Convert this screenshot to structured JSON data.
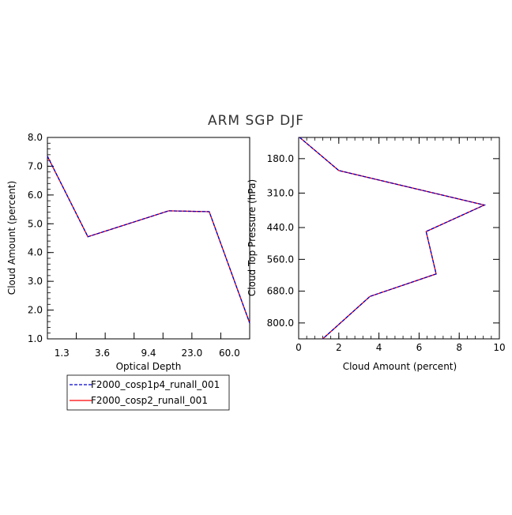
{
  "figure": {
    "title": "ARM SGP DJF"
  },
  "legend": {
    "placement": "bottom-left",
    "entries": [
      {
        "name": "F2000_cosp1p4_runall_001",
        "color": "#0000cc",
        "style": "dashed"
      },
      {
        "name": "F2000_cosp2_runall_001",
        "color": "#ff0000",
        "style": "solid"
      }
    ]
  },
  "chart_data": [
    {
      "type": "line",
      "title": "",
      "xlabel": "Optical Depth",
      "ylabel": "Cloud Amount (percent)",
      "x_tick_labels": [
        "1.3",
        "3.6",
        "9.4",
        "23.0",
        "60.0"
      ],
      "x_category_range": [
        0,
        7
      ],
      "ylim": [
        1.0,
        8.0
      ],
      "y_tick_labels": [
        "1.0",
        "2.0",
        "3.0",
        "4.0",
        "5.0",
        "6.0",
        "7.0",
        "8.0"
      ],
      "series": [
        {
          "name": "F2000_cosp1p4_runall_001",
          "x": [
            0,
            1.4,
            4.2,
            5.6,
            7
          ],
          "y": [
            7.35,
            4.55,
            5.45,
            5.42,
            1.55
          ]
        },
        {
          "name": "F2000_cosp2_runall_001",
          "x": [
            0,
            1.4,
            4.2,
            5.6,
            7
          ],
          "y": [
            7.35,
            4.55,
            5.45,
            5.42,
            1.55
          ]
        }
      ]
    },
    {
      "type": "line",
      "title": "",
      "xlabel": "Cloud Amount (percent)",
      "ylabel": "Cloud Top Pressure (hPa)",
      "xlim": [
        0,
        10
      ],
      "x_tick_labels": [
        "0",
        "2",
        "4",
        "6",
        "8",
        "10"
      ],
      "ylim": [
        100,
        860
      ],
      "y_inverted": true,
      "y_tick_labels": [
        "180.0",
        "310.0",
        "440.0",
        "560.0",
        "680.0",
        "800.0"
      ],
      "series": [
        {
          "name": "F2000_cosp1p4_runall_001",
          "x": [
            0.05,
            2.0,
            9.25,
            6.35,
            6.85,
            3.55,
            1.2
          ],
          "y": [
            100,
            225,
            355,
            455,
            615,
            700,
            860
          ]
        },
        {
          "name": "F2000_cosp2_runall_001",
          "x": [
            0.05,
            2.0,
            9.25,
            6.35,
            6.85,
            3.55,
            1.2
          ],
          "y": [
            100,
            225,
            355,
            455,
            615,
            700,
            860
          ]
        }
      ]
    }
  ]
}
